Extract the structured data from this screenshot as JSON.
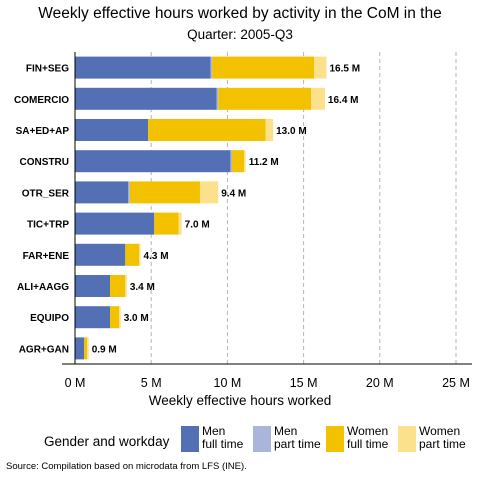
{
  "title_line1": "Weekly effective hours worked by activity in the CoM in the",
  "title_line2": "Quarter: 2005-Q3",
  "caption": "Source: Compilation based on microdata from LFS (INE).",
  "colors": {
    "men_full": "#5470b5",
    "men_part": "#a9b5db",
    "women_full": "#f2c100",
    "women_part": "#fbe18c",
    "grid": "#b5b5b5",
    "axis": "#000000"
  },
  "legend": {
    "title": "Gender and workday",
    "items": [
      {
        "line1": "Men",
        "line2": "full time",
        "color_key": "men_full"
      },
      {
        "line1": "Men",
        "line2": "part time",
        "color_key": "men_part"
      },
      {
        "line1": "Women",
        "line2": "full time",
        "color_key": "women_full"
      },
      {
        "line1": "Women",
        "line2": "part time",
        "color_key": "women_part"
      }
    ]
  },
  "chart_data": {
    "type": "bar",
    "orientation": "horizontal",
    "stacked": true,
    "title": "Weekly effective hours worked by activity in the CoM in the Quarter: 2005-Q3",
    "xlabel": "Weekly effective hours worked",
    "ylabel": "",
    "xlim": [
      0,
      26000000
    ],
    "x_ticks": [
      0,
      5000000,
      10000000,
      15000000,
      20000000,
      25000000
    ],
    "x_tick_labels": [
      "0 M",
      "5 M",
      "10 M",
      "15 M",
      "20 M",
      "25 M"
    ],
    "grid": "vertical dashed",
    "legend_position": "bottom",
    "categories": [
      "FIN+SEG",
      "COMERCIO",
      "SA+ED+AP",
      "CONSTRU",
      "OTR_SER",
      "TIC+TRP",
      "FAR+ENE",
      "ALI+AAGG",
      "EQUIPO",
      "AGR+GAN"
    ],
    "series": [
      {
        "name": "Men full time",
        "values": [
          8900000,
          9300000,
          4800000,
          10200000,
          3500000,
          5200000,
          3300000,
          2300000,
          2300000,
          600000
        ]
      },
      {
        "name": "Men part time",
        "values": [
          100000,
          100000,
          0,
          100000,
          100000,
          0,
          0,
          0,
          0,
          0
        ]
      },
      {
        "name": "Women full time",
        "values": [
          6700000,
          6100000,
          7700000,
          800000,
          4600000,
          1600000,
          900000,
          1000000,
          600000,
          200000
        ]
      },
      {
        "name": "Women part time",
        "values": [
          800000,
          900000,
          500000,
          100000,
          1200000,
          200000,
          100000,
          100000,
          100000,
          100000
        ]
      }
    ],
    "totals": [
      16500000,
      16400000,
      13000000,
      11200000,
      9400000,
      7000000,
      4300000,
      3400000,
      3000000,
      900000
    ],
    "total_labels": [
      "16.5 M",
      "16.4 M",
      "13.0 M",
      "11.2 M",
      "9.4 M",
      "7.0 M",
      "4.3 M",
      "3.4 M",
      "3.0 M",
      "0.9 M"
    ]
  }
}
